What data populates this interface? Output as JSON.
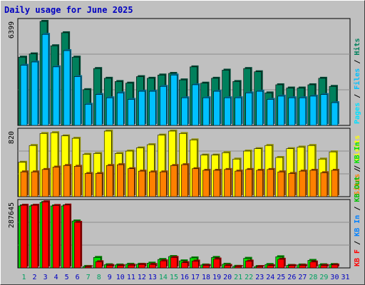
{
  "title": "Daily usage for June 2025",
  "colors": {
    "hits": "#00805c",
    "files": "#00c0ff",
    "pages": "#00e0ff",
    "visits": "#ffff00",
    "sites": "#ff8000",
    "kb_in": "#00e000",
    "kb_out": "#0080ff",
    "kb_f": "#ff0000",
    "title": "#0000c0",
    "day_normal": "#0000c0",
    "day_weekend": "#00a060",
    "grid": "#8c8c8c"
  },
  "chart_data": [
    {
      "type": "bar",
      "panel": "top",
      "ymax_label": "6399",
      "ymax": 6399,
      "legend": [
        "Pages",
        "/",
        "Files",
        "/",
        "Hits"
      ],
      "legend_colors": [
        "#00e0ff",
        "#000000",
        "#00c0ff",
        "#000000",
        "#00805c"
      ],
      "categories": [
        "1",
        "2",
        "3",
        "4",
        "5",
        "6",
        "7",
        "8",
        "9",
        "10",
        "11",
        "12",
        "13",
        "14",
        "15",
        "16",
        "17",
        "18",
        "19",
        "20",
        "21",
        "22",
        "23",
        "24",
        "25",
        "26",
        "27",
        "28",
        "29",
        "30",
        "31"
      ],
      "series": [
        {
          "key": "hits",
          "values": [
            4200,
            4400,
            6400,
            4900,
            5700,
            4200,
            2200,
            3500,
            2900,
            2700,
            2600,
            3000,
            2900,
            3100,
            3200,
            2800,
            3600,
            2600,
            2900,
            3400,
            2700,
            3500,
            3300,
            2000,
            2500,
            2300,
            2300,
            2500,
            2900,
            2400,
            0
          ]
        },
        {
          "key": "files",
          "values": [
            3700,
            3900,
            5600,
            3600,
            4600,
            3000,
            1300,
            1900,
            1700,
            2000,
            1600,
            2100,
            2100,
            2400,
            3100,
            1700,
            2500,
            1700,
            2100,
            1700,
            1700,
            2000,
            2100,
            1600,
            1800,
            1700,
            1700,
            1800,
            1900,
            1400,
            0
          ]
        }
      ]
    },
    {
      "type": "bar",
      "panel": "middle",
      "ymax_label": "820",
      "ymax": 820,
      "legend": [
        "Sites",
        "/",
        "Visits"
      ],
      "legend_colors": [
        "#ff8000",
        "#000000",
        "#ffff00"
      ],
      "categories": [
        "1",
        "2",
        "3",
        "4",
        "5",
        "6",
        "7",
        "8",
        "9",
        "10",
        "11",
        "12",
        "13",
        "14",
        "15",
        "16",
        "17",
        "18",
        "19",
        "20",
        "21",
        "22",
        "23",
        "24",
        "25",
        "26",
        "27",
        "28",
        "29",
        "30",
        "31"
      ],
      "series": [
        {
          "key": "visits",
          "values": [
            430,
            640,
            790,
            800,
            760,
            730,
            530,
            540,
            820,
            540,
            570,
            610,
            650,
            770,
            820,
            790,
            710,
            520,
            520,
            550,
            470,
            570,
            600,
            640,
            490,
            600,
            620,
            640,
            470,
            560,
            0
          ]
        },
        {
          "key": "sites",
          "values": [
            310,
            310,
            340,
            370,
            390,
            380,
            290,
            290,
            390,
            400,
            350,
            320,
            310,
            310,
            390,
            400,
            350,
            330,
            330,
            340,
            320,
            340,
            330,
            340,
            310,
            290,
            320,
            330,
            300,
            330,
            0
          ]
        }
      ]
    },
    {
      "type": "bar",
      "panel": "bottom",
      "ymax_label": "287645",
      "ymax": 287645,
      "legend": [
        "KB F",
        "/",
        "KB In",
        "/",
        "KB Out",
        "/",
        "KB In"
      ],
      "legend_colors": [
        "#ff0000",
        "#000000",
        "#0080ff",
        "#000000",
        "#00c000",
        "#000000",
        "#00e000"
      ],
      "categories": [
        "1",
        "2",
        "3",
        "4",
        "5",
        "6",
        "7",
        "8",
        "9",
        "10",
        "11",
        "12",
        "13",
        "14",
        "15",
        "16",
        "17",
        "18",
        "19",
        "20",
        "21",
        "22",
        "23",
        "24",
        "25",
        "26",
        "27",
        "28",
        "29",
        "30",
        "31"
      ],
      "series": [
        {
          "key": "kb_in",
          "values": [
            272000,
            272000,
            287000,
            272000,
            272000,
            206000,
            6500,
            46000,
            14000,
            13000,
            16000,
            16000,
            21000,
            37000,
            50000,
            31000,
            44000,
            13000,
            46000,
            16000,
            7000,
            42000,
            6000,
            15000,
            49000,
            11000,
            13000,
            33000,
            14000,
            15000,
            0
          ]
        },
        {
          "key": "kb_f",
          "values": [
            275000,
            275000,
            290000,
            274000,
            276000,
            200000,
            5000,
            27000,
            11000,
            10000,
            12000,
            15000,
            15000,
            31000,
            46000,
            23000,
            30000,
            11000,
            39000,
            11000,
            6000,
            30000,
            6000,
            10000,
            38000,
            10000,
            11000,
            26000,
            11000,
            13000,
            0
          ]
        }
      ]
    }
  ],
  "days": [
    "1",
    "2",
    "3",
    "4",
    "5",
    "6",
    "7",
    "8",
    "9",
    "10",
    "11",
    "12",
    "13",
    "14",
    "15",
    "16",
    "17",
    "18",
    "19",
    "20",
    "21",
    "22",
    "23",
    "24",
    "25",
    "26",
    "27",
    "28",
    "29",
    "30",
    "31"
  ],
  "weekend_days": [
    1,
    7,
    8,
    14,
    15,
    21,
    22,
    28,
    29
  ]
}
